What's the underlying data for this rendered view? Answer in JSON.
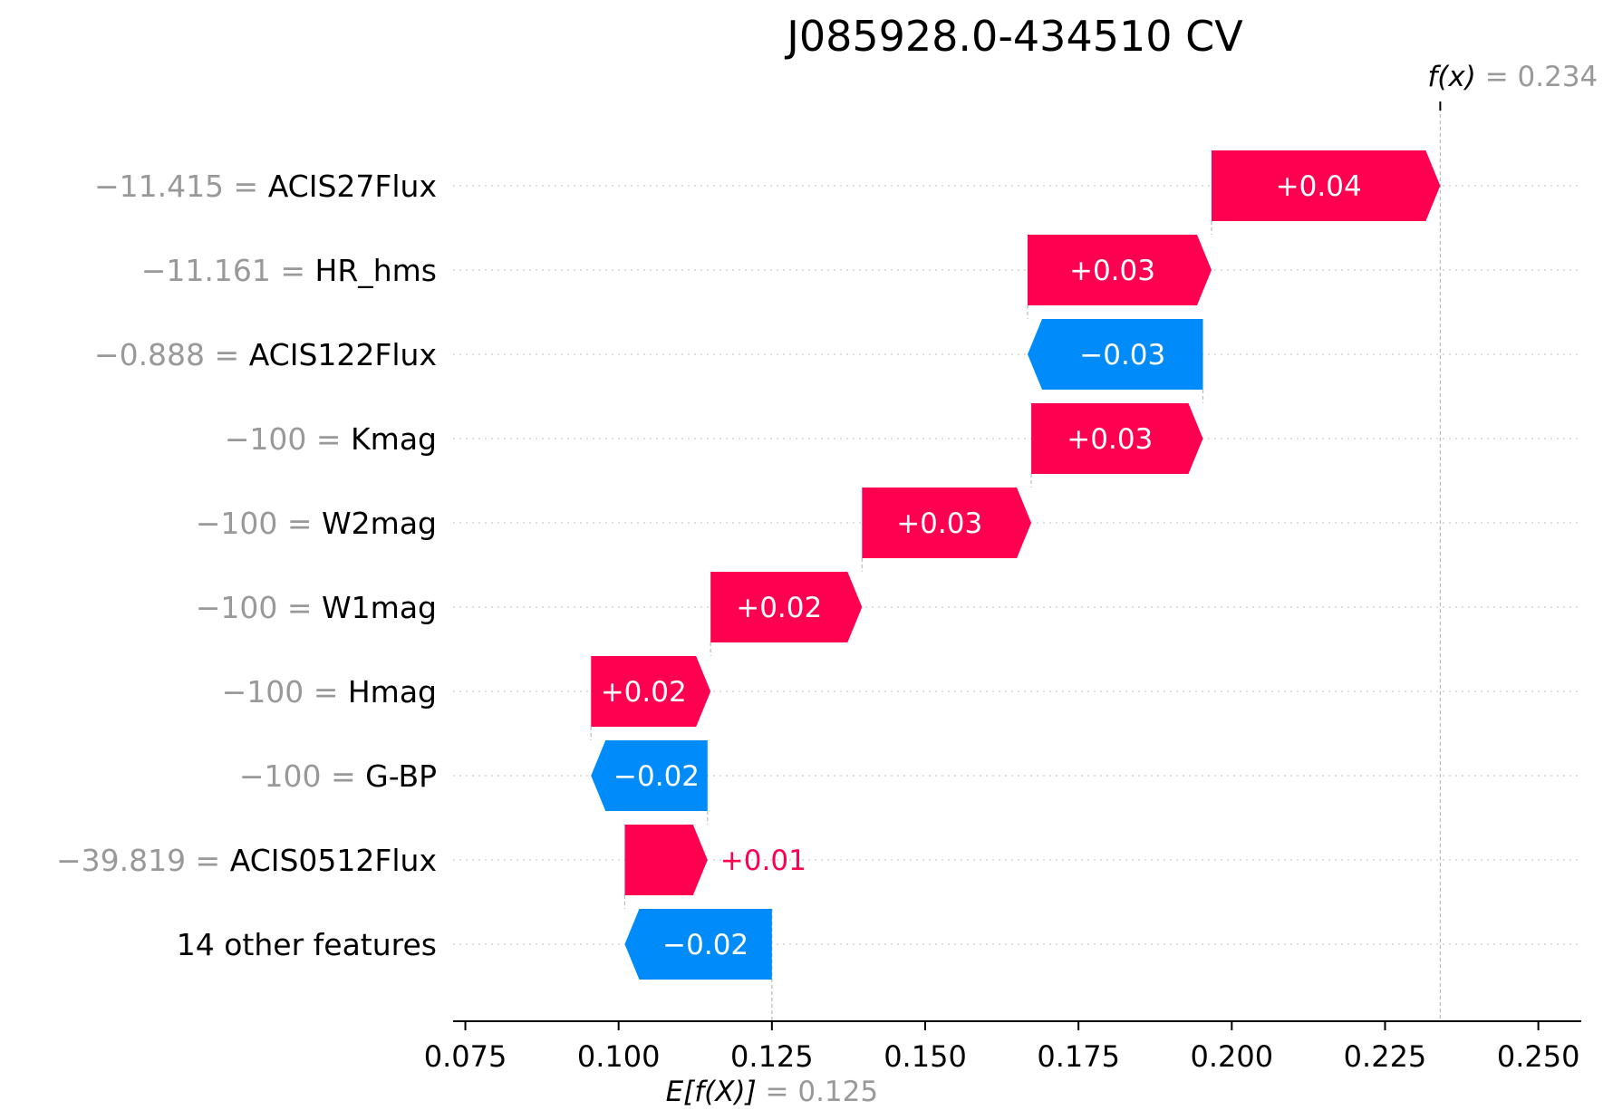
{
  "chart_data": {
    "type": "waterfall",
    "title": "J085928.0-434510 CV",
    "x_ticks": [
      "0.075",
      "0.100",
      "0.125",
      "0.150",
      "0.175",
      "0.200",
      "0.225",
      "0.250"
    ],
    "x_tick_values": [
      0.075,
      0.1,
      0.125,
      0.15,
      0.175,
      0.2,
      0.225,
      0.25
    ],
    "xlim": [
      0.073,
      0.257
    ],
    "base_value": 0.125,
    "output_value": 0.234,
    "base_label": {
      "text": "E[f(X)]",
      "value_text": "= 0.125"
    },
    "output_label": {
      "text": "f(x)",
      "value_text": "= 0.234"
    },
    "features": [
      {
        "value_text": "−11.415 =",
        "name": "ACIS27Flux",
        "start": 0.1967,
        "end": 0.234,
        "label": "+0.04"
      },
      {
        "value_text": "−11.161 =",
        "name": "HR_hms",
        "start": 0.1667,
        "end": 0.1967,
        "label": "+0.03"
      },
      {
        "value_text": "−0.888 =",
        "name": "ACIS122Flux",
        "start": 0.1953,
        "end": 0.1667,
        "label": "−0.03"
      },
      {
        "value_text": "−100 =",
        "name": "Kmag",
        "start": 0.1673,
        "end": 0.1953,
        "label": "+0.03"
      },
      {
        "value_text": "−100 =",
        "name": "W2mag",
        "start": 0.1397,
        "end": 0.1673,
        "label": "+0.03"
      },
      {
        "value_text": "−100 =",
        "name": "W1mag",
        "start": 0.115,
        "end": 0.1397,
        "label": "+0.02"
      },
      {
        "value_text": "−100 =",
        "name": "Hmag",
        "start": 0.0955,
        "end": 0.115,
        "label": "+0.02"
      },
      {
        "value_text": "−100 =",
        "name": "G-BP",
        "start": 0.1145,
        "end": 0.0955,
        "label": "−0.02"
      },
      {
        "value_text": "−39.819 =",
        "name": "ACIS0512Flux",
        "start": 0.101,
        "end": 0.1145,
        "label": "+0.01"
      },
      {
        "value_text": "",
        "name": "14 other features",
        "start": 0.125,
        "end": 0.101,
        "label": "−0.02"
      }
    ],
    "colors": {
      "positive": "#ff0051",
      "negative": "#008bfb",
      "grid": "#cccccc",
      "connector": "#b0bcc8"
    }
  }
}
